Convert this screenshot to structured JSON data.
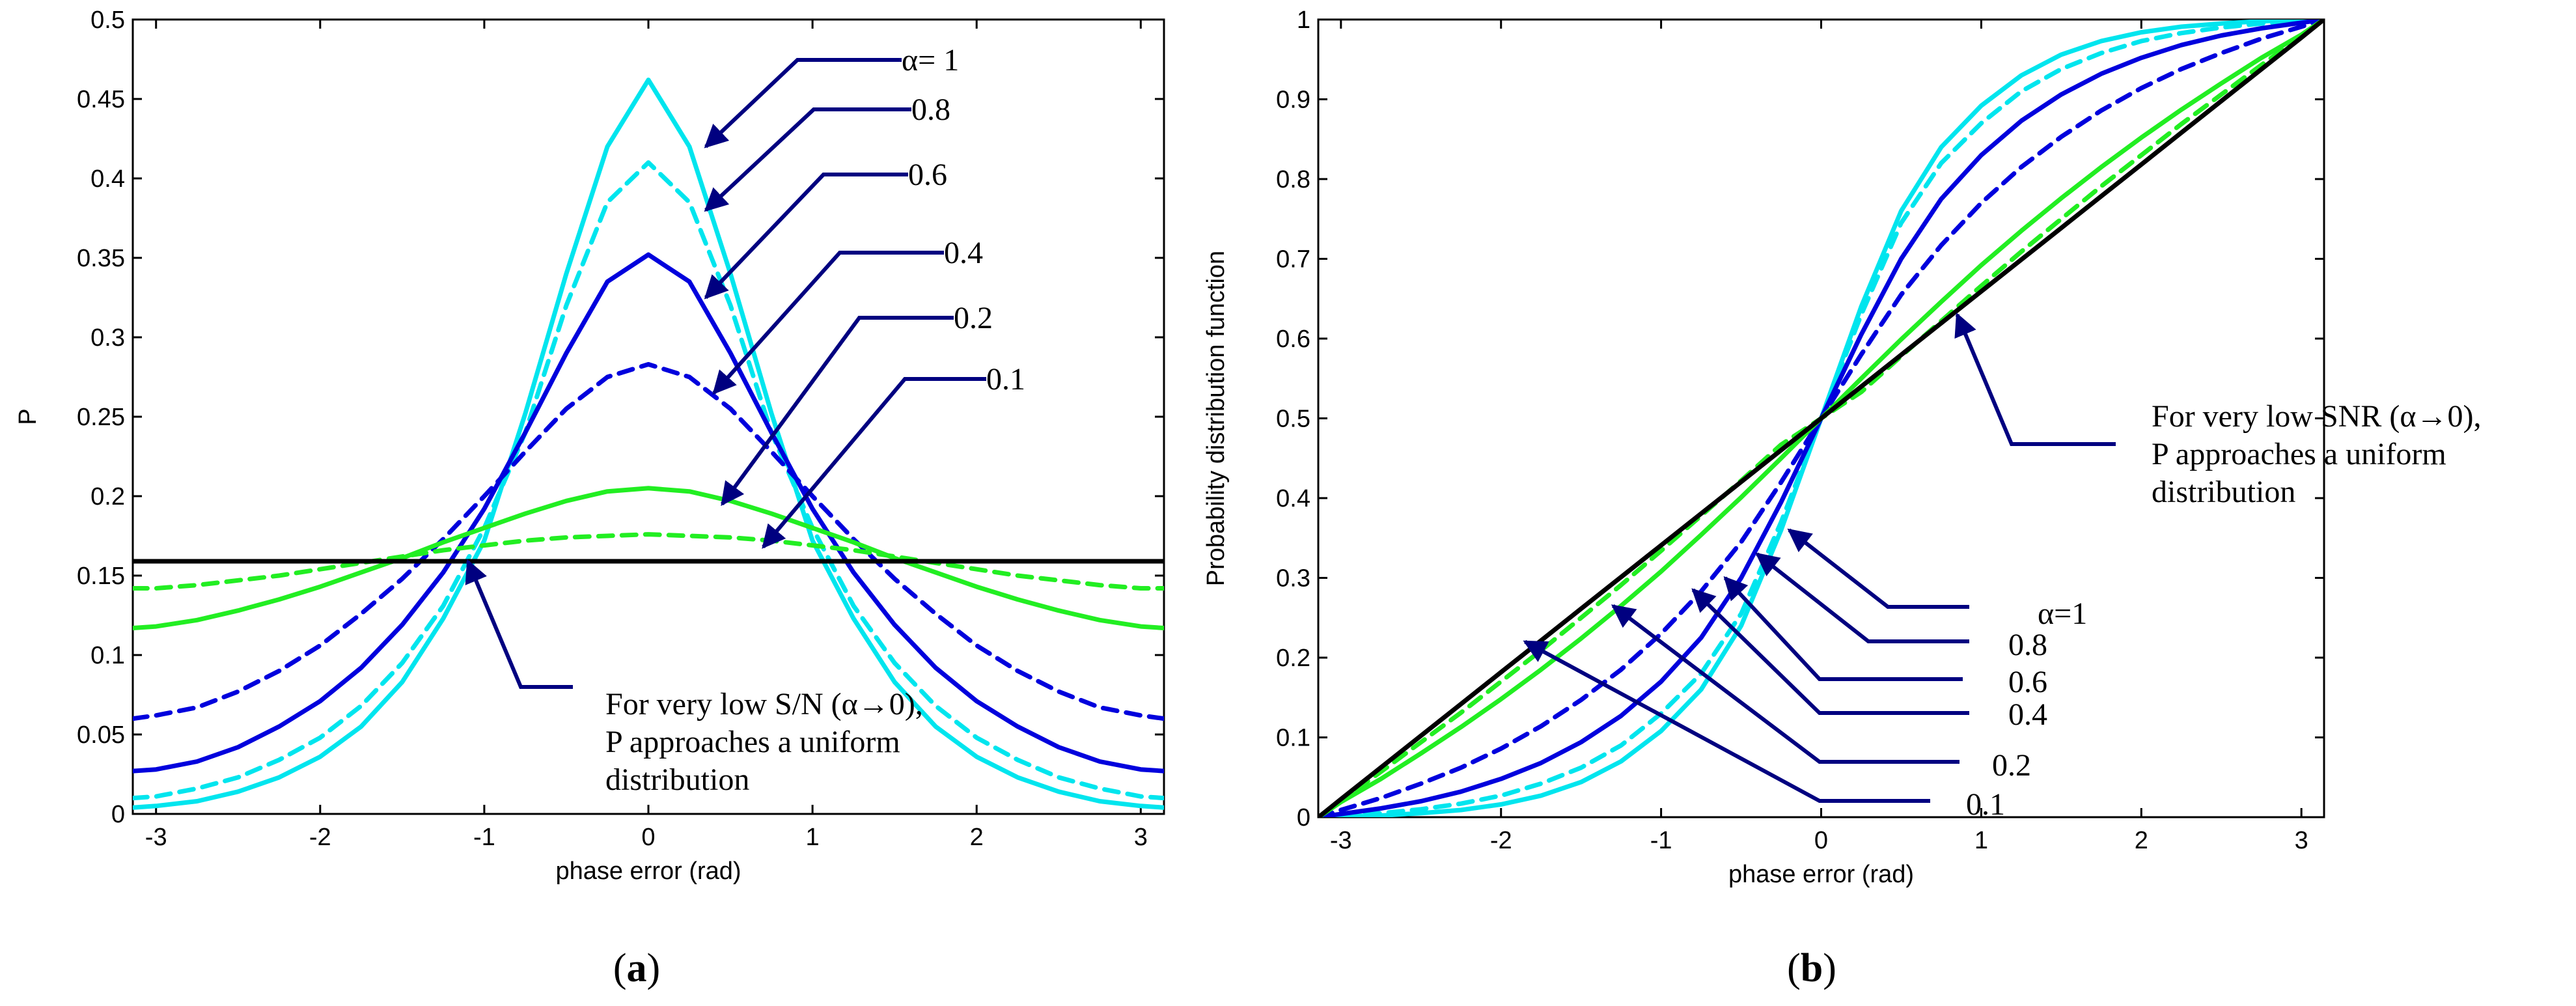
{
  "chart_data": [
    {
      "type": "line",
      "panel_label": "a",
      "xlabel": "phase error (rad)",
      "ylabel": "P",
      "xlim": [
        -3.1416,
        3.1416
      ],
      "ylim": [
        0,
        0.5
      ],
      "xticks": [
        -3,
        -2,
        -1,
        0,
        1,
        2,
        3
      ],
      "yticks": [
        0,
        0.05,
        0.1,
        0.15,
        0.2,
        0.25,
        0.3,
        0.35,
        0.4,
        0.45,
        0.5
      ],
      "x": [
        -3.14,
        -3.0,
        -2.75,
        -2.5,
        -2.25,
        -2.0,
        -1.75,
        -1.5,
        -1.25,
        -1.0,
        -0.75,
        -0.5,
        -0.25,
        0.0,
        0.25,
        0.5,
        0.75,
        1.0,
        1.25,
        1.5,
        1.75,
        2.0,
        2.25,
        2.5,
        2.75,
        3.0,
        3.14
      ],
      "series": [
        {
          "label": "α= 1",
          "color": "#00e5ee",
          "dash": "solid",
          "values": [
            0.004,
            0.005,
            0.008,
            0.014,
            0.023,
            0.036,
            0.055,
            0.083,
            0.123,
            0.172,
            0.252,
            0.34,
            0.42,
            0.462,
            0.42,
            0.34,
            0.252,
            0.172,
            0.123,
            0.083,
            0.055,
            0.036,
            0.023,
            0.014,
            0.008,
            0.005,
            0.004
          ]
        },
        {
          "label": "0.8",
          "color": "#00e5ee",
          "dash": "dash",
          "values": [
            0.01,
            0.011,
            0.016,
            0.023,
            0.034,
            0.048,
            0.068,
            0.095,
            0.131,
            0.18,
            0.24,
            0.32,
            0.385,
            0.41,
            0.385,
            0.32,
            0.24,
            0.18,
            0.131,
            0.095,
            0.068,
            0.048,
            0.034,
            0.023,
            0.016,
            0.011,
            0.01
          ]
        },
        {
          "label": "0.6",
          "color": "#0000dd",
          "dash": "solid",
          "values": [
            0.027,
            0.028,
            0.033,
            0.042,
            0.055,
            0.071,
            0.092,
            0.119,
            0.152,
            0.192,
            0.24,
            0.29,
            0.335,
            0.352,
            0.335,
            0.29,
            0.24,
            0.192,
            0.152,
            0.119,
            0.092,
            0.071,
            0.055,
            0.042,
            0.033,
            0.028,
            0.027
          ]
        },
        {
          "label": "0.4",
          "color": "#0000dd",
          "dash": "dash",
          "values": [
            0.06,
            0.062,
            0.067,
            0.077,
            0.09,
            0.106,
            0.126,
            0.148,
            0.173,
            0.2,
            0.228,
            0.255,
            0.275,
            0.283,
            0.275,
            0.255,
            0.228,
            0.2,
            0.173,
            0.148,
            0.126,
            0.106,
            0.09,
            0.077,
            0.067,
            0.062,
            0.06
          ]
        },
        {
          "label": "0.2",
          "color": "#22ee22",
          "dash": "solid",
          "values": [
            0.117,
            0.118,
            0.122,
            0.128,
            0.135,
            0.143,
            0.152,
            0.161,
            0.171,
            0.18,
            0.189,
            0.197,
            0.203,
            0.205,
            0.203,
            0.197,
            0.189,
            0.18,
            0.171,
            0.161,
            0.152,
            0.143,
            0.135,
            0.128,
            0.122,
            0.118,
            0.117
          ]
        },
        {
          "label": "0.1",
          "color": "#22ee22",
          "dash": "dash",
          "values": [
            0.142,
            0.142,
            0.144,
            0.147,
            0.15,
            0.154,
            0.158,
            0.162,
            0.166,
            0.169,
            0.172,
            0.174,
            0.175,
            0.176,
            0.175,
            0.174,
            0.172,
            0.169,
            0.166,
            0.162,
            0.158,
            0.154,
            0.15,
            0.147,
            0.144,
            0.142,
            0.142
          ]
        },
        {
          "label": "α→0",
          "color": "#000000",
          "dash": "solid",
          "values": [
            0.159,
            0.159,
            0.159,
            0.159,
            0.159,
            0.159,
            0.159,
            0.159,
            0.159,
            0.159,
            0.159,
            0.159,
            0.159,
            0.159,
            0.159,
            0.159,
            0.159,
            0.159,
            0.159,
            0.159,
            0.159,
            0.159,
            0.159,
            0.159,
            0.159,
            0.159,
            0.159
          ]
        }
      ],
      "annotations": [
        {
          "text": "α= 1",
          "target_x": 0.35,
          "target_y": 0.42
        },
        {
          "text": "0.8",
          "target_x": 0.35,
          "target_y": 0.38
        },
        {
          "text": "0.6",
          "target_x": 0.35,
          "target_y": 0.325
        },
        {
          "text": "0.4",
          "target_x": 0.4,
          "target_y": 0.265
        },
        {
          "text": "0.2",
          "target_x": 0.45,
          "target_y": 0.195
        },
        {
          "text": "0.1",
          "target_x": 0.7,
          "target_y": 0.168
        },
        {
          "lines": [
            "For very low S/N (α→0),",
            "P approaches a uniform",
            "distribution"
          ],
          "target_x": -1.1,
          "target_y": 0.159
        }
      ]
    },
    {
      "type": "line",
      "panel_label": "b",
      "xlabel": "phase error (rad)",
      "ylabel": "Probability distribution function",
      "xlim": [
        -3.1416,
        3.1416
      ],
      "ylim": [
        0,
        1
      ],
      "xticks": [
        -3,
        -2,
        -1,
        0,
        1,
        2,
        3
      ],
      "yticks": [
        0,
        0.1,
        0.2,
        0.3,
        0.4,
        0.5,
        0.6,
        0.7,
        0.8,
        0.9,
        1
      ],
      "x": [
        -3.14,
        -3.0,
        -2.75,
        -2.5,
        -2.25,
        -2.0,
        -1.75,
        -1.5,
        -1.25,
        -1.0,
        -0.75,
        -0.5,
        -0.25,
        0.0,
        0.25,
        0.5,
        0.75,
        1.0,
        1.25,
        1.5,
        1.75,
        2.0,
        2.25,
        2.5,
        2.75,
        3.0,
        3.14
      ],
      "series": [
        {
          "label": "α=1",
          "color": "#00e5ee",
          "dash": "solid",
          "values": [
            0.0,
            0.001,
            0.002,
            0.005,
            0.009,
            0.016,
            0.027,
            0.044,
            0.07,
            0.108,
            0.16,
            0.24,
            0.36,
            0.5,
            0.64,
            0.76,
            0.84,
            0.892,
            0.93,
            0.956,
            0.973,
            0.984,
            0.991,
            0.995,
            0.998,
            0.999,
            1.0
          ]
        },
        {
          "label": "0.8",
          "color": "#00e5ee",
          "dash": "dash",
          "values": [
            0.0,
            0.002,
            0.005,
            0.01,
            0.017,
            0.027,
            0.042,
            0.062,
            0.09,
            0.13,
            0.18,
            0.255,
            0.37,
            0.5,
            0.63,
            0.745,
            0.82,
            0.87,
            0.91,
            0.938,
            0.958,
            0.973,
            0.983,
            0.99,
            0.995,
            0.998,
            1.0
          ]
        },
        {
          "label": "0.6",
          "color": "#0000dd",
          "dash": "solid",
          "values": [
            0.0,
            0.004,
            0.011,
            0.02,
            0.032,
            0.048,
            0.068,
            0.094,
            0.127,
            0.17,
            0.225,
            0.3,
            0.395,
            0.5,
            0.605,
            0.7,
            0.775,
            0.83,
            0.873,
            0.906,
            0.932,
            0.952,
            0.968,
            0.98,
            0.989,
            0.996,
            1.0
          ]
        },
        {
          "label": "0.4",
          "color": "#0000dd",
          "dash": "dash",
          "values": [
            0.0,
            0.009,
            0.024,
            0.042,
            0.062,
            0.086,
            0.114,
            0.147,
            0.185,
            0.23,
            0.283,
            0.345,
            0.42,
            0.5,
            0.58,
            0.655,
            0.717,
            0.77,
            0.815,
            0.853,
            0.886,
            0.914,
            0.938,
            0.958,
            0.976,
            0.991,
            1.0
          ]
        },
        {
          "label": "0.2",
          "color": "#22ee22",
          "dash": "solid",
          "values": [
            0.0,
            0.019,
            0.048,
            0.08,
            0.113,
            0.148,
            0.185,
            0.224,
            0.265,
            0.308,
            0.354,
            0.401,
            0.45,
            0.5,
            0.55,
            0.599,
            0.646,
            0.692,
            0.735,
            0.776,
            0.815,
            0.852,
            0.887,
            0.92,
            0.952,
            0.981,
            1.0
          ]
        },
        {
          "label": "0.1",
          "color": "#22ee22",
          "dash": "dash",
          "values": [
            0.0,
            0.021,
            0.057,
            0.094,
            0.131,
            0.17,
            0.209,
            0.25,
            0.291,
            0.334,
            0.378,
            0.422,
            0.467,
            0.5,
            0.533,
            0.578,
            0.622,
            0.666,
            0.709,
            0.75,
            0.791,
            0.83,
            0.869,
            0.906,
            0.943,
            0.979,
            1.0
          ]
        },
        {
          "label": "α→0",
          "color": "#000000",
          "dash": "solid",
          "values": [
            0.0,
            0.0226,
            0.0624,
            0.1021,
            0.1419,
            0.1817,
            0.2215,
            0.2613,
            0.3011,
            0.3408,
            0.3806,
            0.4204,
            0.4602,
            0.5,
            0.5398,
            0.5796,
            0.6194,
            0.6592,
            0.6989,
            0.7387,
            0.7785,
            0.8183,
            0.8581,
            0.8979,
            0.9376,
            0.9774,
            1.0
          ]
        }
      ],
      "annotations": [
        {
          "text": "α=1",
          "target_x": -0.2,
          "target_y": 0.36
        },
        {
          "text": "0.8",
          "target_x": -0.4,
          "target_y": 0.33
        },
        {
          "text": "0.6",
          "target_x": -0.6,
          "target_y": 0.3
        },
        {
          "text": "0.4",
          "target_x": -0.8,
          "target_y": 0.285
        },
        {
          "text": "0.2",
          "target_x": -1.3,
          "target_y": 0.265
        },
        {
          "text": "0.1",
          "target_x": -1.85,
          "target_y": 0.22
        },
        {
          "lines": [
            "For very low SNR (α→0),",
            "P approaches a uniform",
            "distribution"
          ],
          "target_x": 0.85,
          "target_y": 0.63
        }
      ]
    }
  ]
}
